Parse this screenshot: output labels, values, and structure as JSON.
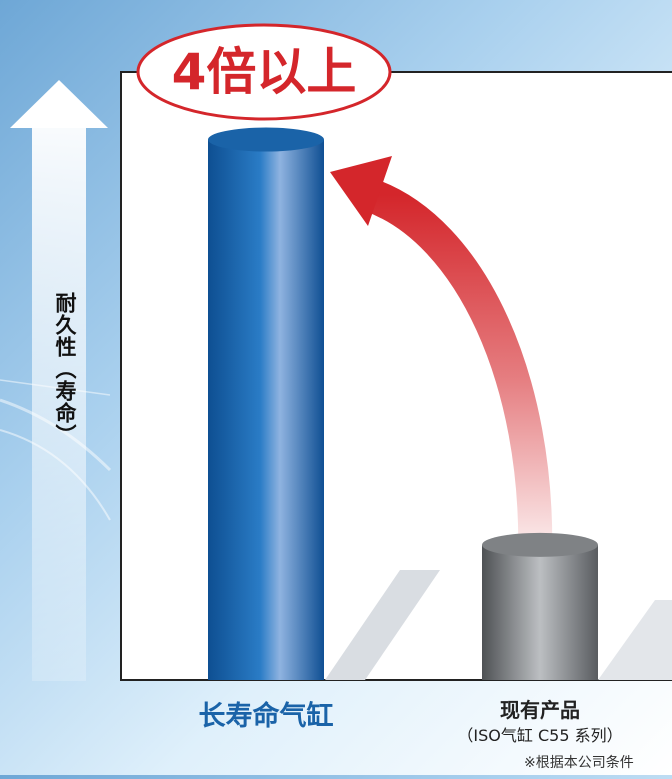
{
  "chart_data": {
    "type": "bar",
    "title": "",
    "categories": [
      "长寿命气缸",
      "现有产品"
    ],
    "category_sublabels": [
      "",
      "（ISO气缸 C55 系列）"
    ],
    "values": [
      4,
      1
    ],
    "ylabel": "耐久性（寿命）",
    "xlabel": "",
    "ylim": [
      0,
      4.5
    ],
    "grid": false,
    "annotation": "4倍以上",
    "footnote": "※根据本公司条件",
    "bar_colors": [
      "#1a63a8",
      "#7f8285"
    ],
    "annotation_color": "#d4262b",
    "category_label_colors": [
      "#1a63a8",
      "#222222"
    ]
  }
}
